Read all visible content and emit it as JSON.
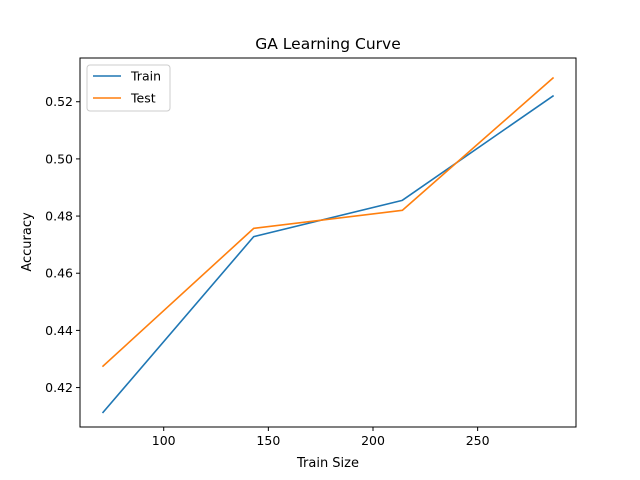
{
  "chart_data": {
    "type": "line",
    "title": "GA Learning Curve",
    "xlabel": "Train Size",
    "ylabel": "Accuracy",
    "xlim": [
      60,
      297
    ],
    "ylim": [
      0.4062,
      0.5353
    ],
    "xticks": [
      100,
      150,
      200,
      250
    ],
    "yticks": [
      0.42,
      0.44,
      0.46,
      0.48,
      0.5,
      0.52
    ],
    "yticklabels": [
      "0.42",
      "0.44",
      "0.46",
      "0.48",
      "0.50",
      "0.52"
    ],
    "grid": false,
    "legend_position": "upper-left",
    "x": [
      71,
      143,
      214,
      286
    ],
    "series": [
      {
        "name": "Train",
        "color": "#1f77b4",
        "values": [
          0.4113,
          0.4728,
          0.4855,
          0.522
        ]
      },
      {
        "name": "Test",
        "color": "#ff7f0e",
        "values": [
          0.4275,
          0.4757,
          0.482,
          0.5283
        ]
      }
    ]
  }
}
